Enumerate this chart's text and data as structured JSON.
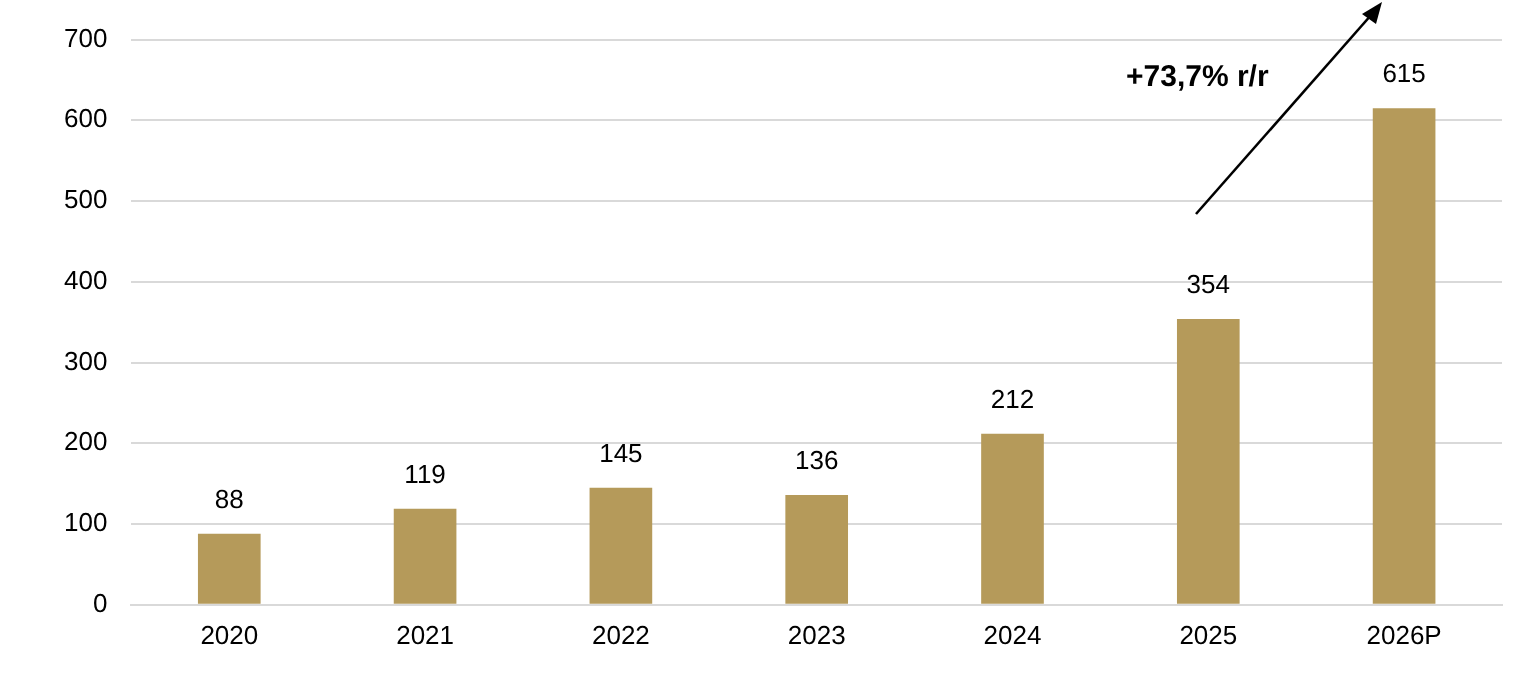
{
  "chart_data": {
    "type": "bar",
    "categories": [
      "2020",
      "2021",
      "2022",
      "2023",
      "2024",
      "2025",
      "2026P"
    ],
    "values": [
      88,
      119,
      145,
      136,
      212,
      354,
      615
    ],
    "color": "#b59a5a",
    "ylim": [
      0,
      700
    ],
    "yticks": [
      0,
      100,
      200,
      300,
      400,
      500,
      600,
      700
    ],
    "grid": "y",
    "data_labels": true,
    "legend": false,
    "annotations": [
      "+73,7% r/r"
    ]
  }
}
